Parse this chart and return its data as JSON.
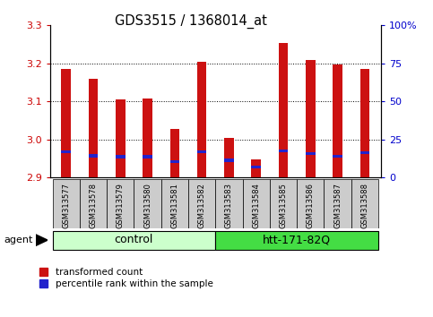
{
  "title": "GDS3515 / 1368014_at",
  "samples": [
    "GSM313577",
    "GSM313578",
    "GSM313579",
    "GSM313580",
    "GSM313581",
    "GSM313582",
    "GSM313583",
    "GSM313584",
    "GSM313585",
    "GSM313586",
    "GSM313587",
    "GSM313588"
  ],
  "red_values": [
    3.185,
    3.16,
    3.105,
    3.108,
    3.028,
    3.205,
    3.003,
    2.948,
    3.253,
    3.21,
    3.198,
    3.185
  ],
  "blue_values": [
    2.967,
    2.957,
    2.955,
    2.955,
    2.942,
    2.968,
    2.945,
    2.928,
    2.97,
    2.963,
    2.956,
    2.965
  ],
  "ymin": 2.9,
  "ymax": 3.3,
  "yticks_left": [
    2.9,
    3.0,
    3.1,
    3.2,
    3.3
  ],
  "yticks_right": [
    0,
    25,
    50,
    75,
    100
  ],
  "bar_color": "#cc1111",
  "blue_color": "#2222cc",
  "control_label": "control",
  "treatment_label": "htt-171-82Q",
  "agent_label": "agent",
  "legend_red": "transformed count",
  "legend_blue": "percentile rank within the sample",
  "control_color": "#ccffcc",
  "treatment_color": "#44dd44",
  "xlabel_color": "#cc0000",
  "right_axis_color": "#0000cc",
  "bar_width": 0.35,
  "tick_bg_color": "#cccccc",
  "n_control": 6
}
